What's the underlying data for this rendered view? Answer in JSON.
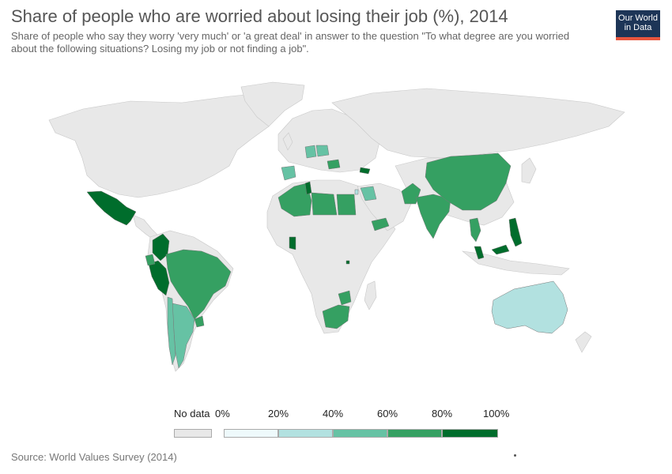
{
  "title": "Share of people who are worried about losing their job (%), 2014",
  "subtitle": "Share of people who say they worry 'very much' or 'a great deal' in answer to the question \"To what degree are you worried about the following situations? Losing my job or not finding a job\".",
  "logo": {
    "line1": "Our World",
    "line2": "in Data"
  },
  "source": "Source: World Values Survey (2014)",
  "legend": {
    "nodata_label": "No data",
    "tick_labels": [
      "0%",
      "20%",
      "40%",
      "60%",
      "80%",
      "100%"
    ],
    "colors": [
      "#eef9fb",
      "#b2e1e0",
      "#66c2a4",
      "#35a062",
      "#006d2c"
    ],
    "nodata_color": "#e8e8e8"
  },
  "colors": {
    "land_no_data": "#e8e8e8",
    "border": "#c8c8c8",
    "band_20_40": "#b2e1e0",
    "band_40_60": "#66c2a4",
    "band_60_80": "#35a062",
    "band_80_100": "#006d2c"
  },
  "map_data": {
    "type": "choropleth",
    "year": 2014,
    "unit": "%",
    "bins": [
      0,
      20,
      40,
      60,
      80,
      100
    ],
    "countries": [
      {
        "name": "Mexico",
        "band": "80-100"
      },
      {
        "name": "Colombia",
        "band": "80-100"
      },
      {
        "name": "Peru",
        "band": "80-100"
      },
      {
        "name": "Ecuador",
        "band": "60-80"
      },
      {
        "name": "Brazil",
        "band": "60-80"
      },
      {
        "name": "Uruguay",
        "band": "60-80"
      },
      {
        "name": "Argentina",
        "band": "40-60"
      },
      {
        "name": "Chile",
        "band": "40-60"
      },
      {
        "name": "Australia",
        "band": "20-40"
      },
      {
        "name": "China",
        "band": "60-80"
      },
      {
        "name": "India",
        "band": "60-80"
      },
      {
        "name": "Pakistan",
        "band": "60-80"
      },
      {
        "name": "Thailand",
        "band": "60-80"
      },
      {
        "name": "Philippines",
        "band": "80-100"
      },
      {
        "name": "Malaysia",
        "band": "80-100"
      },
      {
        "name": "Algeria",
        "band": "60-80"
      },
      {
        "name": "Tunisia",
        "band": "80-100"
      },
      {
        "name": "Libya",
        "band": "60-80"
      },
      {
        "name": "Egypt",
        "band": "60-80"
      },
      {
        "name": "Ghana",
        "band": "80-100"
      },
      {
        "name": "Rwanda",
        "band": "80-100"
      },
      {
        "name": "Zimbabwe",
        "band": "60-80"
      },
      {
        "name": "South Africa",
        "band": "60-80"
      },
      {
        "name": "Yemen",
        "band": "60-80"
      },
      {
        "name": "Iraq",
        "band": "40-60"
      },
      {
        "name": "Lebanon",
        "band": "20-40"
      },
      {
        "name": "Georgia",
        "band": "80-100"
      },
      {
        "name": "Poland",
        "band": "40-60"
      },
      {
        "name": "Germany",
        "band": "40-60"
      },
      {
        "name": "Romania",
        "band": "60-80"
      },
      {
        "name": "Spain",
        "band": "40-60"
      }
    ]
  }
}
